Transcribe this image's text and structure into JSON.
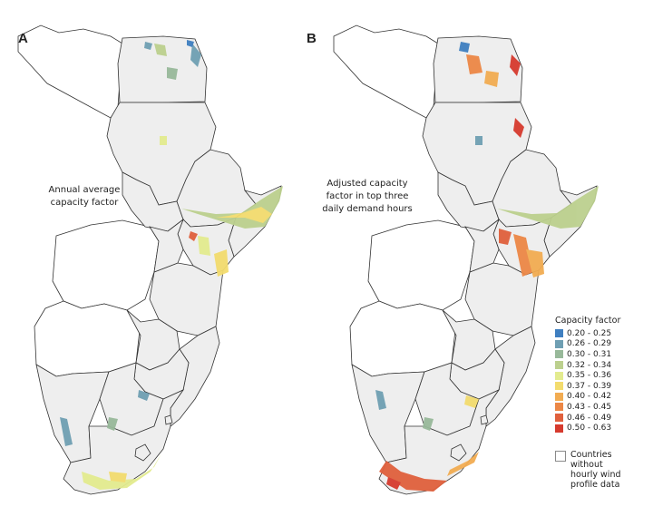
{
  "panels": {
    "a": {
      "label": "A",
      "note_line1": "Annual average",
      "note_line2": "capacity factor"
    },
    "b": {
      "label": "B",
      "note_line1": "Adjusted capacity",
      "note_line2": "factor in top three",
      "note_line3": "daily demand hours"
    }
  },
  "legend": {
    "title": "Capacity factor",
    "items": [
      {
        "range": "0.20 - 0.25",
        "color": "#3f7fc0"
      },
      {
        "range": "0.26 - 0.29",
        "color": "#6f9fb3"
      },
      {
        "range": "0.30 - 0.31",
        "color": "#98b99a"
      },
      {
        "range": "0.32 - 0.34",
        "color": "#bcd08e"
      },
      {
        "range": "0.35 - 0.36",
        "color": "#e3eb8f"
      },
      {
        "range": "0.37 - 0.39",
        "color": "#f3dc6e"
      },
      {
        "range": "0.40 - 0.42",
        "color": "#f2ac52"
      },
      {
        "range": "0.43 - 0.45",
        "color": "#ec8746"
      },
      {
        "range": "0.46 - 0.49",
        "color": "#e0603d"
      },
      {
        "range": "0.50 - 0.63",
        "color": "#d63a2e"
      }
    ],
    "no_data_line1": "Countries",
    "no_data_line2": "without",
    "no_data_line3": "hourly wind",
    "no_data_line4": "profile data"
  },
  "colors": {
    "country_fill": "#eeeeee",
    "country_border": "#333333",
    "no_data_fill": "#ffffff"
  }
}
